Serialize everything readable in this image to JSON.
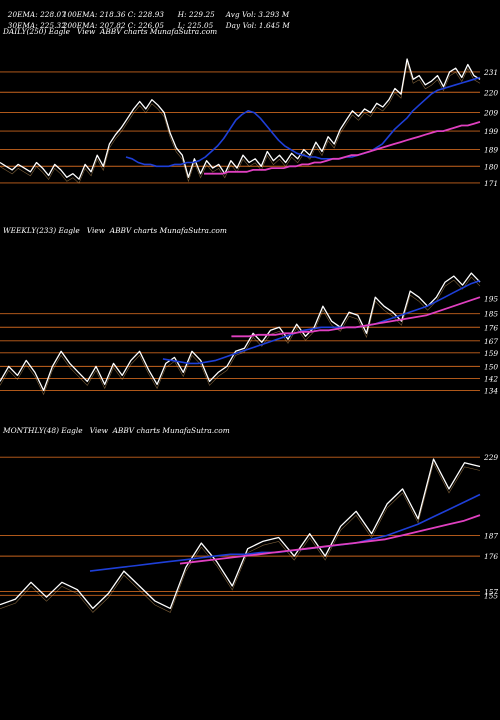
{
  "header": {
    "row1": [
      "20EMA: 228.07",
      "100EMA: 218.36",
      "C: 228.93",
      "H: 229.25",
      "Avg Vol: 3.293 M"
    ],
    "row2": [
      "30EMA: 225.32",
      "200EMA: 207.82",
      "C: 226.05",
      "L: 225.05",
      "Day Vol: 1.645 M"
    ]
  },
  "colors": {
    "background": "#000000",
    "price": "#ffffff",
    "ema_fast": "#1e3fd8",
    "ema_slow": "#e040c0",
    "levels": "#c8641e"
  },
  "chart_data": [
    {
      "type": "line",
      "name": "daily",
      "label": "DAILY(250) Eagle   View  ABBV charts MunafaSutra.com",
      "y_ticks": [
        "231",
        "220",
        "209",
        "199",
        "189",
        "180",
        "171"
      ],
      "level_lines": [
        231,
        220,
        209,
        199,
        189,
        180,
        171
      ],
      "ylim": [
        165,
        245
      ],
      "series": [
        {
          "values": [
            182,
            180,
            178,
            181,
            179,
            177,
            182,
            179,
            175,
            181,
            178,
            174,
            176,
            173,
            181,
            177,
            186,
            180,
            192,
            197,
            201,
            206,
            211,
            215,
            211,
            216,
            213,
            209,
            198,
            190,
            186,
            174,
            184,
            176,
            183,
            179,
            181,
            176,
            183,
            179,
            186,
            182,
            184,
            180,
            188,
            183,
            186,
            182,
            187,
            184,
            189,
            186,
            193,
            188,
            196,
            192,
            200,
            205,
            210,
            207,
            211,
            209,
            214,
            212,
            216,
            222,
            219,
            238,
            227,
            229,
            224,
            226,
            229,
            223,
            231,
            233,
            228,
            235,
            229,
            227
          ]
        },
        {
          "values": [
            185,
            184,
            182,
            181,
            181,
            180,
            180,
            180,
            181,
            181,
            182,
            182,
            183,
            185,
            188,
            191,
            195,
            200,
            205,
            208,
            210,
            209,
            206,
            202,
            198,
            194,
            191,
            189,
            187,
            186,
            185,
            185,
            184,
            184,
            184,
            184,
            185,
            185,
            186,
            187,
            188,
            190,
            192,
            196,
            200,
            203,
            206,
            210,
            213,
            216,
            219,
            221,
            222,
            223,
            224,
            225,
            226,
            227,
            228
          ]
        },
        {
          "values": [
            176,
            176,
            176,
            176,
            177,
            177,
            177,
            177,
            178,
            178,
            178,
            179,
            179,
            179,
            180,
            180,
            181,
            181,
            182,
            182,
            183,
            184,
            184,
            185,
            186,
            186,
            187,
            188,
            189,
            190,
            191,
            192,
            193,
            194,
            195,
            196,
            197,
            198,
            199,
            199,
            200,
            201,
            202,
            202,
            203,
            204
          ]
        }
      ]
    },
    {
      "type": "line",
      "name": "weekly",
      "label": "WEEKLY(233) Eagle   View  ABBV charts MunafaSutra.com",
      "y_ticks": [
        "195",
        "185",
        "176",
        "167",
        "159",
        "150",
        "142",
        "134"
      ],
      "level_lines": [
        185,
        176,
        167,
        159,
        150,
        142,
        134
      ],
      "ylim": [
        125,
        230
      ],
      "series": [
        {
          "values": [
            140,
            150,
            144,
            154,
            146,
            134,
            150,
            160,
            152,
            146,
            140,
            150,
            138,
            152,
            144,
            154,
            160,
            148,
            138,
            152,
            156,
            146,
            160,
            154,
            140,
            146,
            150,
            160,
            162,
            172,
            166,
            174,
            176,
            168,
            178,
            170,
            176,
            190,
            180,
            176,
            186,
            184,
            172,
            196,
            190,
            186,
            180,
            200,
            196,
            190,
            196,
            206,
            210,
            204,
            212,
            206
          ]
        },
        {
          "values": [
            155,
            154,
            153,
            152,
            152,
            153,
            154,
            156,
            158,
            160,
            162,
            164,
            166,
            168,
            170,
            172,
            174,
            175,
            176,
            176,
            176,
            176,
            176,
            177,
            178,
            180,
            182,
            184,
            186,
            188,
            190,
            193,
            196,
            199,
            202,
            205,
            207
          ]
        },
        {
          "values": [
            170,
            170,
            170,
            171,
            171,
            171,
            172,
            172,
            173,
            173,
            174,
            174,
            175,
            176,
            176,
            177,
            178,
            179,
            180,
            181,
            182,
            183,
            184,
            186,
            188,
            190,
            192,
            194,
            196
          ]
        }
      ]
    },
    {
      "type": "line",
      "name": "monthly",
      "label": "MONTHLY(48) Eagle   View  ABBV charts MunafaSutra.com",
      "y_ticks": [
        "229",
        "187",
        "176",
        "157",
        "155"
      ],
      "level_lines": [
        229,
        187,
        176,
        157,
        155
      ],
      "ylim": [
        145,
        235
      ],
      "series": [
        {
          "values": [
            150,
            153,
            162,
            154,
            162,
            158,
            148,
            156,
            168,
            160,
            152,
            148,
            170,
            183,
            173,
            160,
            180,
            184,
            186,
            176,
            188,
            176,
            192,
            200,
            188,
            204,
            212,
            196,
            228,
            212,
            226,
            224
          ]
        },
        {
          "values": [
            168,
            169,
            170,
            171,
            172,
            173,
            174,
            175,
            176,
            177,
            177,
            178,
            178,
            179,
            180,
            181,
            182,
            183,
            185,
            187,
            190,
            193,
            197,
            201,
            205,
            209
          ]
        },
        {
          "values": [
            172,
            173,
            174,
            175,
            176,
            177,
            178,
            179,
            180,
            181,
            182,
            183,
            184,
            185,
            187,
            189,
            191,
            193,
            195,
            198
          ]
        }
      ]
    }
  ]
}
